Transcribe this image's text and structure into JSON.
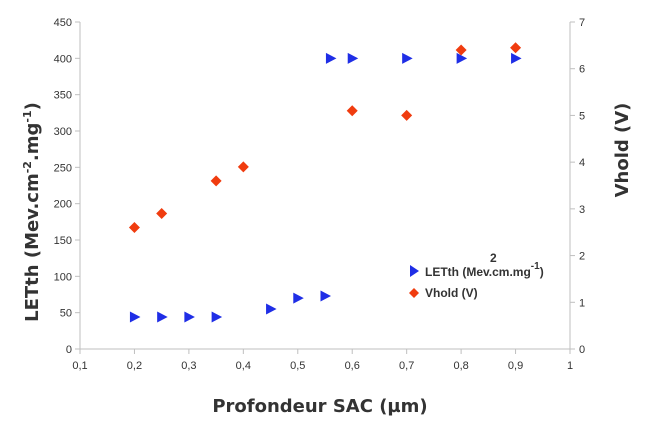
{
  "chart_data": {
    "type": "scatter",
    "x_axis": {
      "label": "Profondeur SAC (µm)",
      "range": [
        0.1,
        1
      ],
      "ticks": [
        "0,1",
        "0,2",
        "0,3",
        "0,4",
        "0,5",
        "0,6",
        "0,7",
        "0,8",
        "0,9",
        "1"
      ]
    },
    "y_left": {
      "label_main": "LETth (Mev.cm",
      "label_sup1": "-2",
      "label_mid": ".mg",
      "label_sup2": "-1",
      "label_end": ")",
      "range": [
        0,
        450
      ],
      "ticks": [
        "0",
        "50",
        "100",
        "150",
        "200",
        "250",
        "300",
        "350",
        "400",
        "450"
      ]
    },
    "y_right": {
      "label": "Vhold (V)",
      "range": [
        0,
        7
      ],
      "ticks": [
        "0",
        "1",
        "2",
        "3",
        "4",
        "5",
        "6",
        "7"
      ]
    },
    "grid": false,
    "legend_position": "bottom-right",
    "series": [
      {
        "name": "LETth (Mev.cm2.mg-1)",
        "legend_label": "LETth (Mev.cm.mg",
        "legend_sup_2": "2",
        "legend_sup_1": "-1",
        "legend_end": ")",
        "marker": "triangle-right",
        "color": "#1f2ee6",
        "axis": "left",
        "x": [
          0.2,
          0.25,
          0.3,
          0.35,
          0.45,
          0.5,
          0.55,
          0.56,
          0.6,
          0.7,
          0.8,
          0.9
        ],
        "y": [
          44,
          44,
          44,
          44,
          55,
          70,
          73,
          400,
          400,
          400,
          400,
          400
        ]
      },
      {
        "name": "Vhold (V)",
        "legend_label": "Vhold (V)",
        "marker": "diamond",
        "color": "#f03c0f",
        "axis": "right",
        "x": [
          0.2,
          0.25,
          0.35,
          0.4,
          0.6,
          0.7,
          0.8,
          0.9
        ],
        "y": [
          2.6,
          2.9,
          3.6,
          3.9,
          5.1,
          5.0,
          6.4,
          6.45
        ]
      }
    ]
  }
}
